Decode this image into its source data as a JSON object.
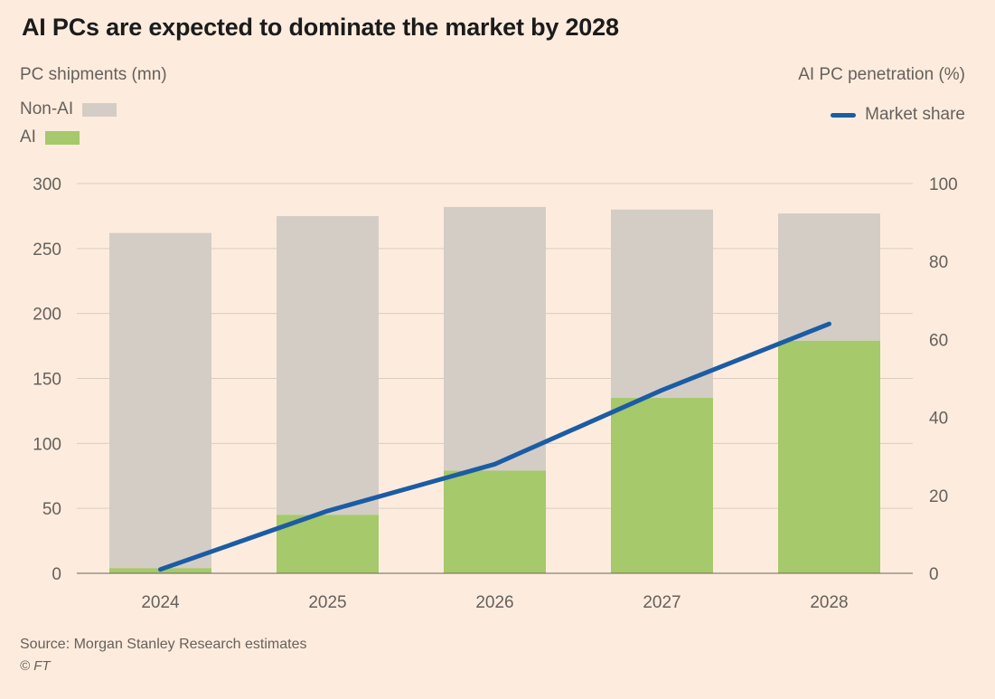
{
  "title": "AI PCs are expected to dominate the market by 2028",
  "axes": {
    "left_label": "PC shipments (mn)",
    "right_label": "AI PC penetration (%)"
  },
  "legend": {
    "non_ai": "Non-AI",
    "ai": "AI",
    "market_share": "Market share"
  },
  "source": "Source: Morgan Stanley Research estimates",
  "copyright": "© FT",
  "colors": {
    "background": "#fdecdd",
    "non_ai_bar": "#d4cdc6",
    "ai_bar": "#a5c96b",
    "line": "#1b5ca4",
    "grid": "#d8cdc1",
    "baseline": "#6b645f",
    "axis_text": "#66605c",
    "title_text": "#1b1b1b"
  },
  "chart_data": {
    "type": "bar",
    "subtype": "stacked-bars-with-line",
    "title": "AI PCs are expected to dominate the market by 2028",
    "categories": [
      "2024",
      "2025",
      "2026",
      "2027",
      "2028"
    ],
    "series": [
      {
        "name": "AI",
        "type": "bar",
        "stack": true,
        "axis": "left",
        "values": [
          4,
          45,
          79,
          135,
          179
        ]
      },
      {
        "name": "Non-AI",
        "type": "bar",
        "stack": true,
        "axis": "left",
        "values": [
          258,
          230,
          203,
          145,
          98
        ]
      },
      {
        "name": "Market share",
        "type": "line",
        "axis": "right",
        "values": [
          1,
          16,
          28,
          47,
          64
        ]
      }
    ],
    "left_axis": {
      "label": "PC shipments (mn)",
      "min": 0,
      "max": 300,
      "ticks": [
        0,
        50,
        100,
        150,
        200,
        250,
        300
      ]
    },
    "right_axis": {
      "label": "AI PC penetration (%)",
      "min": 0,
      "max": 100,
      "ticks": [
        0,
        20,
        40,
        60,
        80,
        100
      ]
    },
    "grid": "horizontal",
    "legend_position": "top"
  }
}
